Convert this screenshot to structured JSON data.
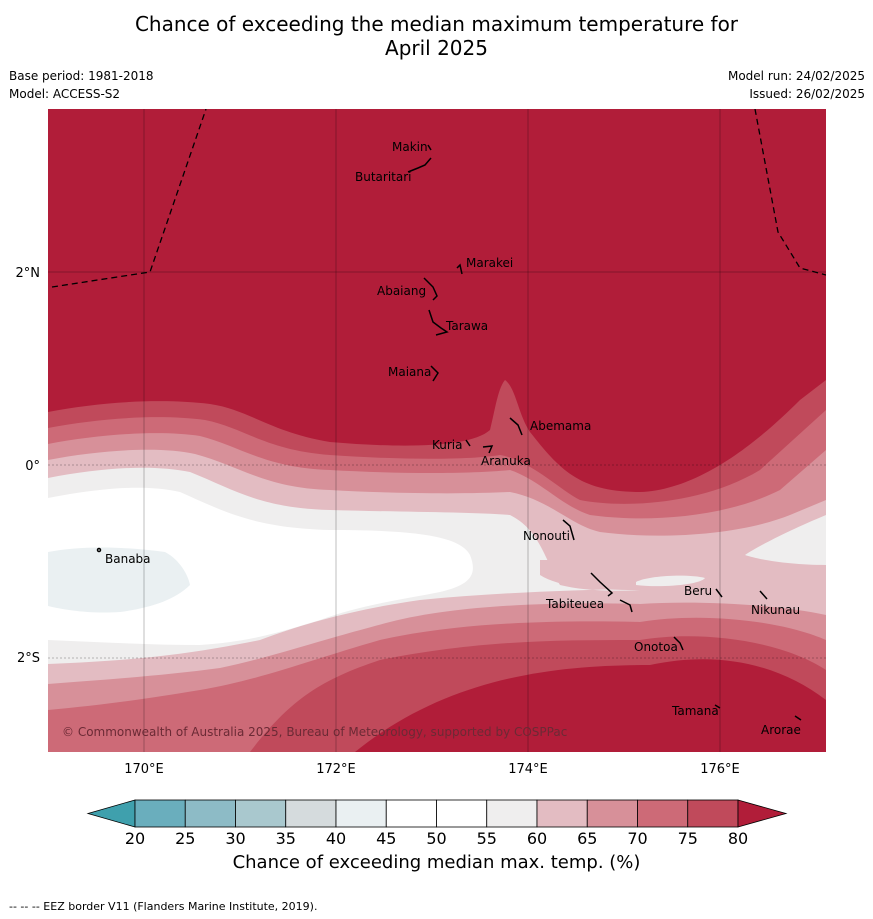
{
  "header": {
    "title_line1": "Chance of exceeding the median maximum temperature for",
    "title_line2": "April 2025",
    "base_period": "Base period: 1981-2018",
    "model": "Model: ACCESS-S2",
    "model_run": "Model run: 24/02/2025",
    "issued": "Issued: 26/02/2025"
  },
  "map": {
    "copyright": "© Commonwealth of Australia 2025, Bureau of Meteorology, supported by COSPPac",
    "lat_labels": [
      "2°N",
      "0°",
      "2°S"
    ],
    "lon_labels": [
      "170°E",
      "172°E",
      "174°E",
      "176°E"
    ],
    "islands": [
      {
        "name": "Makin"
      },
      {
        "name": "Butaritari"
      },
      {
        "name": "Marakei"
      },
      {
        "name": "Abaiang"
      },
      {
        "name": "Tarawa"
      },
      {
        "name": "Maiana"
      },
      {
        "name": "Abemama"
      },
      {
        "name": "Kuria"
      },
      {
        "name": "Aranuka"
      },
      {
        "name": "Nonouti"
      },
      {
        "name": "Banaba"
      },
      {
        "name": "Tabiteuea"
      },
      {
        "name": "Beru"
      },
      {
        "name": "Nikunau"
      },
      {
        "name": "Onotoa"
      },
      {
        "name": "Tamana"
      },
      {
        "name": "Arorae"
      }
    ]
  },
  "colorbar": {
    "title": "Chance of exceeding median max. temp. (%)",
    "ticks": [
      "20",
      "25",
      "30",
      "35",
      "40",
      "45",
      "50",
      "55",
      "60",
      "65",
      "70",
      "75",
      "80"
    ],
    "colors": {
      "below20": "#3fa0ad",
      "20-25": "#6aaebd",
      "25-30": "#8dbbc6",
      "30-35": "#a9c8ce",
      "35-40": "#d5dbdd",
      "40-45": "#eaf0f2",
      "45-50": "#ffffff",
      "50-55": "#ffffff",
      "55-60": "#efeeee",
      "60-65": "#e3bcc2",
      "65-70": "#d79099",
      "70-75": "#cd6a77",
      "75-80": "#c04a5b",
      "above80": "#b11d39"
    }
  },
  "footer": {
    "eez_note": "--  --  -- EEZ border V11 (Flanders Marine Institute, 2019)."
  }
}
